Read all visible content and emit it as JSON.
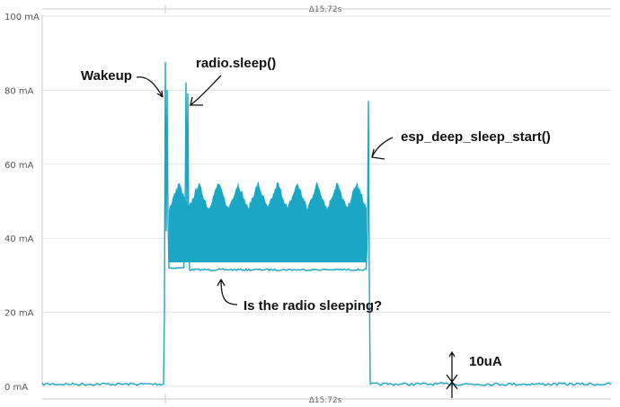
{
  "chart_data": {
    "type": "line",
    "title": "",
    "xlabel": "",
    "ylabel": "",
    "y_unit": "mA",
    "ylim": [
      0,
      100
    ],
    "yticks": [
      {
        "value": 0,
        "label": "0 mA"
      },
      {
        "value": 20,
        "label": "20 mA"
      },
      {
        "value": 40,
        "label": "40 mA"
      },
      {
        "value": 60,
        "label": "60 mA"
      },
      {
        "value": 80,
        "label": "80 mA"
      },
      {
        "value": 100,
        "label": "100 mA"
      }
    ],
    "duration_label": "Δ15.72s",
    "grid": true,
    "legend": "none",
    "line_color": "#1aa6c4",
    "series": [
      {
        "name": "",
        "baseline_mA": 0.6,
        "wakeup_mA": 0.6,
        "active_low_mA": 31.5,
        "active_band_top_mA": 48,
        "active_peak_mA": 55,
        "ripple_count": 10,
        "spikes_mA": [
          87.5,
          82,
          77
        ],
        "sleep_mA": 0.6
      }
    ],
    "annotations": [
      {
        "id": "wakeup",
        "text": "Wakeup"
      },
      {
        "id": "radio-sleep",
        "text": "radio.sleep()"
      },
      {
        "id": "deep-sleep",
        "text": "esp_deep_sleep_start()"
      },
      {
        "id": "radio-question",
        "text": "Is the radio sleeping?"
      },
      {
        "id": "sleep-current",
        "text": "10uA"
      }
    ]
  }
}
